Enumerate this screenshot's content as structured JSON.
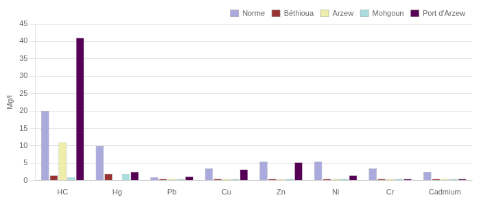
{
  "chart_data": {
    "type": "bar",
    "ylabel": "Mg/l",
    "categories": [
      "HC",
      "Hg",
      "Pb",
      "Cu",
      "Zn",
      "Ni",
      "Cr",
      "Cadmium"
    ],
    "series": [
      {
        "name": "Norme",
        "color": "#aaaadd",
        "values": [
          20,
          10,
          1.0,
          3.5,
          5.5,
          5.5,
          3.5,
          2.5
        ]
      },
      {
        "name": "Béthioua",
        "color": "#993333",
        "values": [
          1.5,
          2.0,
          0.5,
          0.5,
          0.5,
          0.5,
          0.5,
          0.5
        ]
      },
      {
        "name": "Arzew",
        "color": "#eeeeaa",
        "values": [
          11.0,
          0.0,
          0.5,
          0.5,
          0.5,
          0.5,
          0.5,
          0.5
        ]
      },
      {
        "name": "Mohgoun",
        "color": "#aadddd",
        "values": [
          1.0,
          2.0,
          0.5,
          0.5,
          0.5,
          0.5,
          0.5,
          0.5
        ]
      },
      {
        "name": "Port d'Arzew",
        "color": "#550055",
        "values": [
          41.0,
          2.5,
          1.2,
          3.2,
          5.2,
          1.5,
          0.5,
          0.5
        ]
      }
    ],
    "ylim": [
      0,
      45
    ],
    "yticks": [
      0,
      5,
      10,
      15,
      20,
      25,
      30,
      35,
      40,
      45
    ],
    "grid": true,
    "legend": "upper right"
  }
}
